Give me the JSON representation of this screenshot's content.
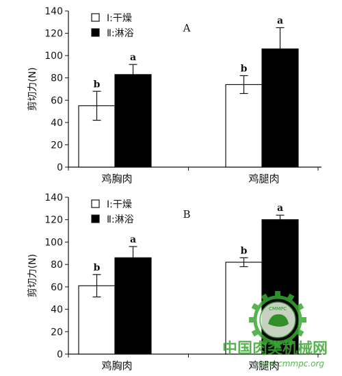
{
  "chart_data": [
    {
      "type": "bar",
      "panel_label": "A",
      "categories": [
        "鸡胸肉",
        "鸡腿肉"
      ],
      "series": [
        {
          "name": "Ⅰ:干燥",
          "values": [
            55,
            74
          ],
          "errors": [
            13,
            8
          ],
          "sig": [
            "b",
            "b"
          ],
          "color": "#ffffff"
        },
        {
          "name": "Ⅱ:淋浴",
          "values": [
            83,
            106
          ],
          "errors": [
            9,
            19
          ],
          "sig": [
            "a",
            "a"
          ],
          "color": "#000000"
        }
      ],
      "ylabel": "剪切力(N)",
      "ylim": [
        0,
        140
      ],
      "yticks": [
        "0",
        "20",
        "40",
        "60",
        "80",
        "100",
        "120",
        "140"
      ],
      "legend_position": "top-left",
      "grid": false
    },
    {
      "type": "bar",
      "panel_label": "B",
      "categories": [
        "鸡胸肉",
        "鸡腿肉"
      ],
      "series": [
        {
          "name": "Ⅰ:干燥",
          "values": [
            61,
            82
          ],
          "errors": [
            10,
            4
          ],
          "sig": [
            "b",
            "b"
          ],
          "color": "#ffffff"
        },
        {
          "name": "Ⅱ:淋浴",
          "values": [
            86,
            120
          ],
          "errors": [
            10,
            4
          ],
          "sig": [
            "a",
            "a"
          ],
          "color": "#000000"
        }
      ],
      "ylabel": "剪切力(N)",
      "ylim": [
        0,
        140
      ],
      "yticks": [
        "0",
        "20",
        "40",
        "60",
        "80",
        "100",
        "120",
        "140"
      ],
      "legend_position": "top-left",
      "grid": false
    }
  ],
  "watermark": {
    "text": "中国肉类机械网",
    "url": "www.cmmpc.org",
    "logo_text": "CMMPC",
    "color": "#3aa832"
  }
}
